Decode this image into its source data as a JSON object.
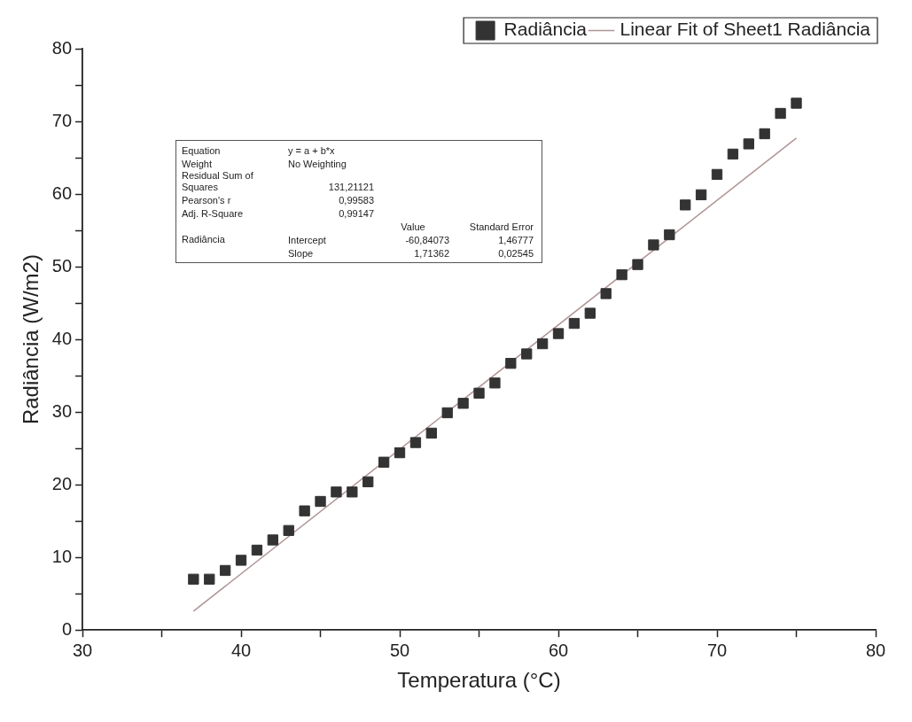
{
  "chart_data": {
    "type": "scatter",
    "xlabel": "Temperatura (°C)",
    "ylabel": "Radiância (W/m2)",
    "xlim": [
      30,
      80
    ],
    "xticks": [
      30,
      {
        "value": 35,
        "label": null
      },
      40,
      {
        "value": 45,
        "label": null
      },
      50,
      {
        "value": 55,
        "label": null
      },
      60,
      {
        "value": 65,
        "label": null
      },
      70,
      {
        "value": 75,
        "label": null
      },
      80
    ],
    "ylim": [
      0,
      80
    ],
    "yticks": [
      0,
      {
        "value": 5,
        "label": null
      },
      10,
      {
        "value": 15,
        "label": null
      },
      20,
      {
        "value": 25,
        "label": null
      },
      30,
      {
        "value": 35,
        "label": null
      },
      40,
      {
        "value": 45,
        "label": null
      },
      50,
      {
        "value": 55,
        "label": null
      },
      60,
      {
        "value": 65,
        "label": null
      },
      70,
      {
        "value": 75,
        "label": null
      },
      80
    ],
    "grid": false,
    "legend": "top right",
    "series": [
      {
        "name": "Radiância",
        "type": "scatter",
        "marker": "square",
        "color": "#333333",
        "x": [
          37,
          38,
          39,
          40,
          41,
          42,
          43,
          44,
          45,
          46,
          47,
          48,
          49,
          50,
          51,
          52,
          53,
          54,
          55,
          56,
          57,
          58,
          59,
          60,
          61,
          62,
          63,
          64,
          65,
          66,
          67,
          68,
          69,
          70,
          71,
          72,
          73,
          74,
          75
        ],
        "values": [
          7.0,
          7.0,
          8.2,
          9.6,
          11.0,
          12.4,
          13.7,
          16.4,
          17.7,
          19.0,
          19.0,
          20.4,
          23.1,
          24.4,
          25.8,
          27.1,
          29.9,
          31.2,
          32.6,
          34.0,
          36.7,
          38.0,
          39.4,
          40.8,
          42.2,
          43.6,
          46.3,
          48.9,
          50.3,
          53.0,
          54.4,
          58.5,
          59.9,
          62.7,
          65.5,
          66.9,
          68.3,
          71.1,
          72.5
        ]
      },
      {
        "name": "Linear Fit of Sheet1 Radiância",
        "type": "line",
        "marker": "none",
        "color": "#b09494",
        "x": [
          37,
          75
        ],
        "values": [
          2.6,
          67.7
        ]
      }
    ],
    "annotations": [
      "Equation",
      "y = a + b*x",
      "Weight",
      "No Weighting",
      "Residual Sum of Squares",
      "131,21121",
      "Pearson's r",
      "0,99583",
      "Adj. R-Square",
      "0,99147",
      "Value",
      "Standard Error",
      "Radiância",
      "Intercept",
      "-60,84073",
      "1,46777",
      "Slope",
      "1,71362",
      "0,02545"
    ]
  }
}
